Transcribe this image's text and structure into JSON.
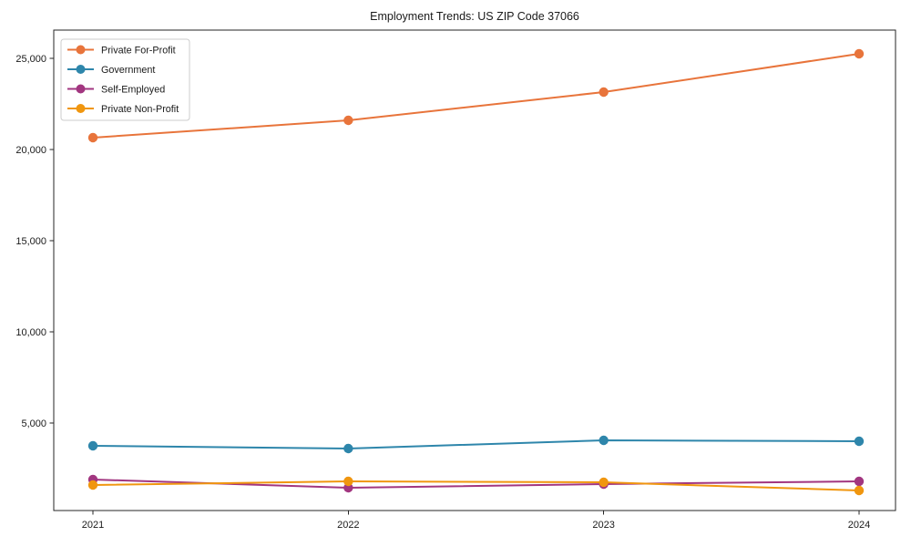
{
  "chart_data": {
    "type": "line",
    "title": "Employment Trends: US ZIP Code 37066",
    "x": [
      2021,
      2022,
      2023,
      2024
    ],
    "x_tick_labels": [
      "2021",
      "2022",
      "2023",
      "2024"
    ],
    "series": [
      {
        "name": "Private For-Profit",
        "color": "#E8743B",
        "values": [
          20650,
          21600,
          23150,
          25250
        ]
      },
      {
        "name": "Government",
        "color": "#2E86AB",
        "values": [
          3750,
          3600,
          4050,
          4000
        ]
      },
      {
        "name": "Self-Employed",
        "color": "#A23680",
        "values": [
          1900,
          1450,
          1650,
          1800
        ]
      },
      {
        "name": "Private Non-Profit",
        "color": "#F0960F",
        "values": [
          1600,
          1800,
          1750,
          1300
        ]
      }
    ],
    "y_ticks": [
      5000,
      10000,
      15000,
      20000,
      25000
    ],
    "y_tick_labels": [
      "5,000",
      "10,000",
      "15,000",
      "20,000",
      "25,000"
    ],
    "ylim": [
      200,
      26550
    ],
    "grid": false,
    "legend_position": "upper-left",
    "marker": "circle",
    "background": "#ffffff",
    "axis_color": "#262626",
    "legend_border_color": "#cccccc",
    "text_color": "#1a1a1a"
  }
}
